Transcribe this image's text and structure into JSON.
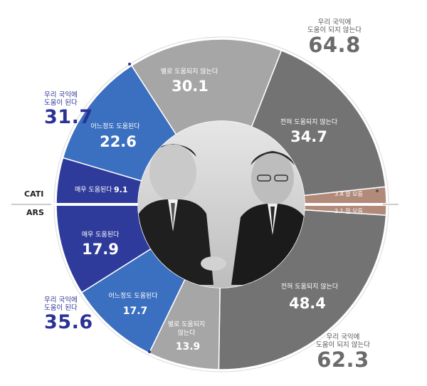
{
  "chart_data": {
    "type": "pie",
    "modes": [
      {
        "name": "CATI",
        "slices": [
          {
            "label": "별로 도움되지 않는다",
            "value": 30.1,
            "color": "#a6a6a6"
          },
          {
            "label": "전혀 도움되지 않는다",
            "value": 34.7,
            "color": "#737373"
          },
          {
            "label": "잘 모름",
            "value": 3.4,
            "color": "#b28a7a"
          },
          {
            "label": "매우 도움된다",
            "value": 9.1,
            "color": "#2f3b9a"
          },
          {
            "label": "어느정도 도움된다",
            "value": 22.6,
            "color": "#3b6fbf"
          }
        ]
      },
      {
        "name": "ARS",
        "slices": [
          {
            "label": "잘 모름",
            "value": 2.1,
            "color": "#b28a7a"
          },
          {
            "label": "전혀 도움되지 않는다",
            "value": 48.4,
            "color": "#737373"
          },
          {
            "label": "별로 도움되지 않는다",
            "value": 13.9,
            "color": "#a6a6a6"
          },
          {
            "label": "어느정도 도움된다",
            "value": 17.7,
            "color": "#3b6fbf"
          },
          {
            "label": "매우 도움된다",
            "value": 17.9,
            "color": "#2f3b9a"
          }
        ]
      }
    ],
    "totals": {
      "cati_help": {
        "label": "우리 국익에\n도움이 된다",
        "value": 31.7
      },
      "cati_nohelp": {
        "label": "우리 국익에\n도움이 되지 않는다",
        "value": 64.8
      },
      "ars_help": {
        "label": "우리 국익에\n도움이 된다",
        "value": 35.6
      },
      "ars_nohelp": {
        "label": "우리 국익에\n도움이 되지 않는다",
        "value": 62.3
      }
    },
    "legend": "none",
    "grid": false
  },
  "labels": {
    "cati": "CATI",
    "ars": "ARS",
    "cati_help_line1": "우리 국익에",
    "cati_help_line2": "도움이 된다",
    "cati_help_value": "31.7",
    "cati_nohelp_line1": "우리 국익에",
    "cati_nohelp_line2": "도움이 되지 않는다",
    "cati_nohelp_value": "64.8",
    "ars_help_line1": "우리 국익에",
    "ars_help_line2": "도움이 된다",
    "ars_help_value": "35.6",
    "ars_nohelp_line1": "우리 국익에",
    "ars_nohelp_line2": "도움이 되지 않는다",
    "ars_nohelp_value": "62.3",
    "cati_byeollo": "별로 도움되지 않는다",
    "cati_byeollo_value": "30.1",
    "cati_jeonhyeo": "전혀 도움되지 않는다",
    "cati_jeonhyeo_value": "34.7",
    "cati_dk": "3.4  잘 모름",
    "cati_maeu": "매우 도움된다",
    "cati_maeu_value": "9.1",
    "cati_eoneu": "어느정도 도움된다",
    "cati_eoneu_value": "22.6",
    "ars_dk": "2.1  잘 모름",
    "ars_jeonhyeo": "전혀 도움되지 않는다",
    "ars_jeonhyeo_value": "48.4",
    "ars_byeollo_1": "별로 도움되지",
    "ars_byeollo_2": "않는다",
    "ars_byeollo_value": "13.9",
    "ars_eoneu": "어느정도 도움된다",
    "ars_eoneu_value": "17.7",
    "ars_maeu": "매우 도움된다",
    "ars_maeu_value": "17.9"
  },
  "colors": {
    "navy": "#2f3b9a",
    "blue": "#3b6fbf",
    "light_gray": "#a6a6a6",
    "dark_gray": "#737373",
    "brown": "#b28a7a",
    "accent_text": "#2b3296"
  }
}
